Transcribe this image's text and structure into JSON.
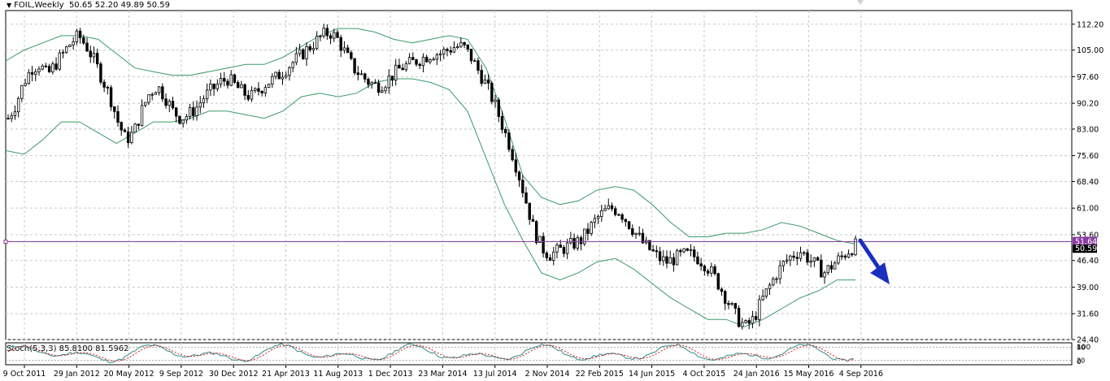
{
  "header": {
    "symbol": "FOIL,Weekly",
    "ohlc": "50.65 52.20 49.89 50.59"
  },
  "stoch_label": "Stoch(5,3,3) 85.8100 81.5962",
  "colors": {
    "candle": "#000000",
    "bands": "#3a9a6a",
    "hline": "#8a3aa0",
    "price_tag": "#8a3aa0",
    "bid_tag": "#000000",
    "stoch_main": "#2e8b8b",
    "stoch_signal": "#d02020",
    "arrow": "#1a2fc0",
    "grid": "#c8c8c8"
  },
  "chart_data": {
    "type": "candlestick",
    "timeframe": "Weekly",
    "y_range": [
      24.4,
      116
    ],
    "y_ticks": [
      "112.20",
      "105.00",
      "97.60",
      "90.20",
      "83.00",
      "75.60",
      "68.40",
      "61.00",
      "53.60",
      "46.40",
      "39.00",
      "31.60",
      "24.40"
    ],
    "x_ticks": [
      "9 Oct 2011",
      "29 Jan 2012",
      "20 May 2012",
      "9 Sep 2012",
      "30 Dec 2012",
      "21 Apr 2013",
      "11 Aug 2013",
      "1 Dec 2013",
      "23 Mar 2014",
      "13 Jul 2014",
      "2 Nov 2014",
      "22 Feb 2015",
      "14 Jun 2015",
      "4 Oct 2015",
      "24 Jan 2016",
      "15 May 2016",
      "4 Sep 2016"
    ],
    "price_line": {
      "value": 51.64,
      "label": "51.64"
    },
    "bid_tag": {
      "value": 50.59,
      "label": "50.59"
    },
    "price_path_closes": [
      86,
      90,
      96,
      100,
      101,
      98,
      101,
      104,
      107,
      109,
      106,
      102,
      97,
      92,
      85,
      80,
      82,
      88,
      93,
      95,
      92,
      88,
      86,
      87,
      89,
      92,
      94,
      96,
      97,
      95,
      93,
      92,
      94,
      96,
      97,
      99,
      101,
      103,
      105,
      107,
      109,
      110,
      108,
      104,
      100,
      98,
      96,
      95,
      96,
      98,
      100,
      101,
      102,
      103,
      104,
      104,
      105,
      106,
      106,
      103,
      99,
      95,
      90,
      84,
      78,
      71,
      63,
      55,
      50,
      48,
      49,
      50,
      51,
      52,
      55,
      58,
      60,
      61,
      60,
      57,
      54,
      51,
      49,
      47,
      46,
      47,
      48,
      48,
      47,
      45,
      42,
      38,
      34,
      30,
      28,
      30,
      35,
      39,
      43,
      46,
      48,
      49,
      47,
      45,
      43,
      45,
      47,
      49,
      50.59
    ],
    "upper_band": [
      102,
      105,
      107,
      109,
      109,
      108,
      104,
      100,
      99,
      98,
      98,
      99,
      100,
      101,
      101,
      103,
      106,
      109,
      111,
      111,
      110,
      108,
      107,
      108,
      109,
      108,
      100,
      86,
      70,
      64,
      62,
      63,
      66,
      67,
      66,
      62,
      57,
      53,
      53,
      54,
      54,
      55,
      57,
      56,
      54,
      52,
      51
    ],
    "lower_band": [
      77,
      76,
      80,
      85,
      85,
      82,
      79,
      82,
      85,
      85,
      86,
      88,
      88,
      87,
      86,
      88,
      92,
      93,
      92,
      93,
      96,
      97,
      97,
      96,
      94,
      88,
      75,
      62,
      52,
      43,
      41,
      43,
      46,
      47,
      44,
      40,
      36,
      33,
      30,
      30,
      28,
      30,
      33,
      36,
      38,
      41,
      41
    ],
    "middle_band": [
      90,
      91,
      93,
      96,
      97,
      96,
      93,
      91,
      92,
      92,
      93,
      94,
      95,
      95,
      94,
      95,
      99,
      101,
      101,
      102,
      103,
      102,
      102,
      102,
      101,
      98,
      88,
      74,
      61,
      54,
      52,
      53,
      56,
      57,
      55,
      51,
      47,
      43,
      41,
      41,
      40,
      41,
      44,
      46,
      46,
      46,
      46
    ],
    "stochastic": {
      "params": "5,3,3",
      "main": 85.81,
      "signal": 81.5962,
      "levels": [
        "80",
        "20"
      ],
      "axis": [
        "100",
        "0"
      ]
    },
    "annotation": "blue arrow pointing down-right from latest candle"
  }
}
